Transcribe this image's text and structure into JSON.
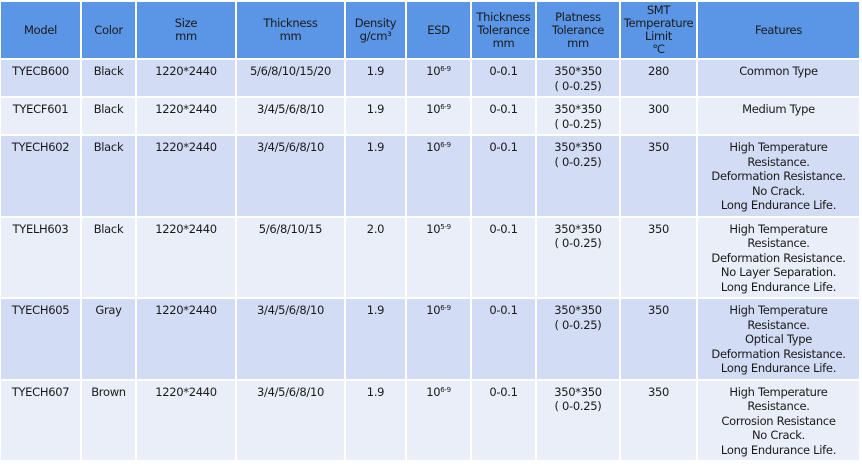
{
  "headers": [
    {
      "key": "model",
      "lines": [
        "Model"
      ]
    },
    {
      "key": "color",
      "lines": [
        "Color"
      ]
    },
    {
      "key": "size",
      "lines": [
        "Size",
        "mm"
      ]
    },
    {
      "key": "thickness",
      "lines": [
        "Thickness",
        "mm"
      ]
    },
    {
      "key": "density",
      "lines": [
        "Density",
        "g/cm³"
      ]
    },
    {
      "key": "esd",
      "lines": [
        "ESD"
      ]
    },
    {
      "key": "thickness-tolerance",
      "lines": [
        "Thickness",
        "Tolerance",
        "mm"
      ]
    },
    {
      "key": "platness-tolerance",
      "lines": [
        "Platness",
        "Tolerance",
        "mm"
      ]
    },
    {
      "key": "smt-temperature",
      "lines": [
        "SMT",
        "Temperature",
        "Limit",
        "℃"
      ]
    },
    {
      "key": "features",
      "lines": [
        "Features"
      ]
    }
  ],
  "rows": [
    {
      "model": "TYECB600",
      "color": "Black",
      "size": "1220*2440",
      "thickness": "5/6/8/10/15/20",
      "density": "1.9",
      "esd_base": "10",
      "esd_exp": "6-9",
      "thickness_tolerance": "0-0.1",
      "platness": [
        "350*350",
        "( 0-0.25)"
      ],
      "smt": "280",
      "features": [
        "Common Type"
      ]
    },
    {
      "model": "TYECF601",
      "color": "Black",
      "size": "1220*2440",
      "thickness": "3/4/5/6/8/10",
      "density": "1.9",
      "esd_base": "10",
      "esd_exp": "6-9",
      "thickness_tolerance": "0-0.1",
      "platness": [
        "350*350",
        "( 0-0.25)"
      ],
      "smt": "300",
      "features": [
        "Medium Type"
      ]
    },
    {
      "model": "TYECH602",
      "color": "Black",
      "size": "1220*2440",
      "thickness": "3/4/5/6/8/10",
      "density": "1.9",
      "esd_base": "10",
      "esd_exp": "6-9",
      "thickness_tolerance": "0-0.1",
      "platness": [
        "350*350",
        "( 0-0.25)"
      ],
      "smt": "350",
      "features": [
        "High Temperature",
        "Resistance.",
        "Deformation Resistance.",
        "No Crack.",
        "Long Endurance Life."
      ]
    },
    {
      "model": "TYELH603",
      "color": "Black",
      "size": "1220*2440",
      "thickness": "5/6/8/10/15",
      "density": "2.0",
      "esd_base": "10",
      "esd_exp": "5-9",
      "thickness_tolerance": "0-0.1",
      "platness": [
        "350*350",
        "( 0-0.25)"
      ],
      "smt": "350",
      "features": [
        "High Temperature",
        "Resistance.",
        "Deformation Resistance.",
        "No Layer Separation.",
        "Long Endurance Life."
      ]
    },
    {
      "model": "TYECH605",
      "color": "Gray",
      "size": "1220*2440",
      "thickness": "3/4/5/6/8/10",
      "density": "1.9",
      "esd_base": "10",
      "esd_exp": "6-9",
      "thickness_tolerance": "0-0.1",
      "platness": [
        "350*350",
        "( 0-0.25)"
      ],
      "smt": "350",
      "features": [
        "High Temperature",
        "Resistance.",
        "Optical Type",
        "Deformation Resistance.",
        "Long Endurance Life."
      ]
    },
    {
      "model": "TYECH607",
      "color": "Brown",
      "size": "1220*2440",
      "thickness": "3/4/5/6/8/10",
      "density": "1.9",
      "esd_base": "10",
      "esd_exp": "6-9",
      "thickness_tolerance": "0-0.1",
      "platness": [
        "350*350",
        "( 0-0.25)"
      ],
      "smt": "350",
      "features": [
        "High Temperature",
        "Resistance.",
        "Corrosion Resistance",
        "No Crack.",
        "Long Endurance Life."
      ]
    }
  ],
  "colors": {
    "header": "#5b95e5",
    "row_odd": "#d2dcf4",
    "row_even": "#e9eef9"
  }
}
